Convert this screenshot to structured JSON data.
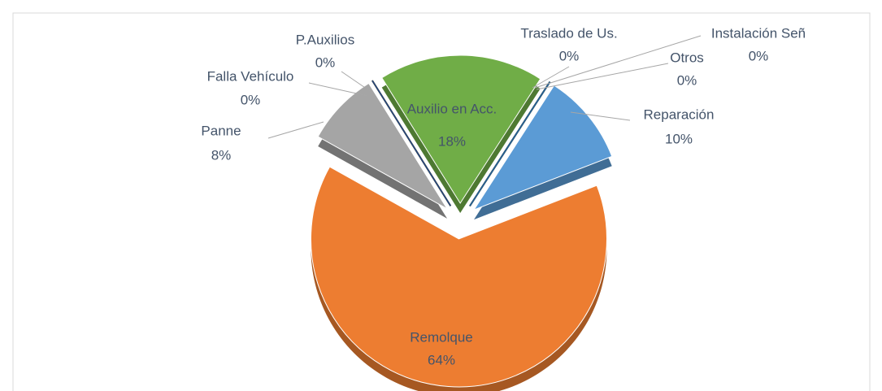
{
  "chart_data": {
    "type": "pie",
    "categories": [
      "Auxilio en Acc.",
      "Traslado de Us.",
      "Instalación Señ",
      "Otros",
      "Reparación",
      "Remolque",
      "Panne",
      "Falla Vehículo",
      "P.Auxilios"
    ],
    "values": [
      18,
      0,
      0,
      0,
      10,
      64,
      8,
      0,
      0
    ],
    "value_labels": [
      "18%",
      "0%",
      "0%",
      "0%",
      "10%",
      "64%",
      "8%",
      "0%",
      "0%"
    ],
    "colors": [
      "#70ad47",
      "#636363",
      "#997300",
      "#255e91",
      "#5b9bd5",
      "#ed7d31",
      "#a5a5a5",
      "#ffc000",
      "#264478"
    ]
  }
}
